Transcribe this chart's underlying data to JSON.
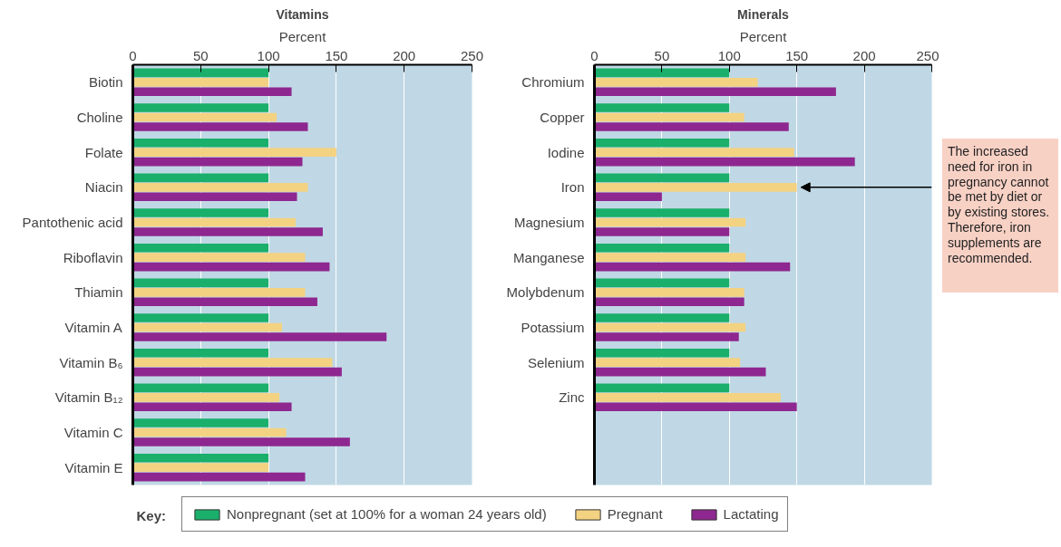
{
  "chart_data": [
    {
      "type": "bar",
      "orientation": "horizontal",
      "title": "Vitamins",
      "xlabel": "Percent",
      "legend_title": "Key:",
      "legend": "bottom",
      "grid": "x",
      "xlim": [
        0,
        250
      ],
      "xticks": [
        0,
        50,
        100,
        150,
        200,
        250
      ],
      "categories": [
        "Biotin",
        "Choline",
        "Folate",
        "Niacin",
        "Pantothenic acid",
        "Riboflavin",
        "Thiamin",
        "Vitamin A",
        "Vitamin B₆",
        "Vitamin B₁₂",
        "Vitamin C",
        "Vitamin E"
      ],
      "series": [
        {
          "name": "Nonpregnant (set at 100% for a woman 24 years old)",
          "color": "#1aaf6b",
          "values": [
            100,
            100,
            100,
            100,
            100,
            100,
            100,
            100,
            100,
            100,
            100,
            100
          ]
        },
        {
          "name": "Pregnant",
          "color": "#f3d282",
          "values": [
            100,
            106,
            150,
            129,
            120,
            127,
            127,
            110,
            147,
            108,
            113,
            100
          ]
        },
        {
          "name": "Lactating",
          "color": "#8e278f",
          "values": [
            117,
            129,
            125,
            121,
            140,
            145,
            136,
            187,
            154,
            117,
            160,
            127
          ]
        }
      ]
    },
    {
      "type": "bar",
      "orientation": "horizontal",
      "title": "Minerals",
      "xlabel": "Percent",
      "grid": "x",
      "xlim": [
        0,
        250
      ],
      "xticks": [
        0,
        50,
        100,
        150,
        200,
        250
      ],
      "categories": [
        "Chromium",
        "Copper",
        "Iodine",
        "Iron",
        "Magnesium",
        "Manganese",
        "Molybdenum",
        "Potassium",
        "Selenium",
        "Zinc",
        null,
        null
      ],
      "series": [
        {
          "color": "#1aaf6b",
          "values": [
            100,
            100,
            100,
            100,
            100,
            100,
            100,
            100,
            100,
            100,
            null,
            null
          ]
        },
        {
          "color": "#f3d282",
          "values": [
            121,
            111,
            148,
            150,
            112,
            112,
            111,
            112,
            108,
            138,
            null,
            null
          ]
        },
        {
          "color": "#8e278f",
          "values": [
            179,
            144,
            193,
            50,
            100,
            145,
            111,
            107,
            127,
            150,
            null,
            null
          ]
        }
      ],
      "annotations": [
        {
          "text": "The increased need for iron in pregnancy cannot be met by diet or by existing stores. Therefore, iron supplements are recommended.",
          "x": 150,
          "y": "Iron"
        }
      ]
    }
  ]
}
